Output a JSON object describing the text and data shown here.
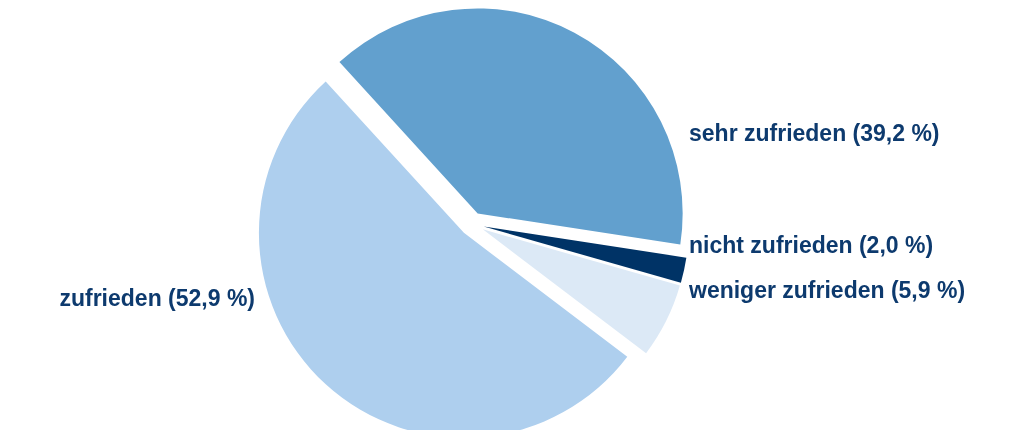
{
  "chart_data": {
    "type": "pie",
    "categories": [
      "sehr zufrieden (39,2 %)",
      "nicht zufrieden (2,0 %)",
      "weniger zufrieden (5,9 %)",
      "zufrieden (52,9 %)"
    ],
    "values": [
      39.2,
      2.0,
      5.9,
      52.9
    ],
    "colors": [
      "#62a0ce",
      "#003366",
      "#dce9f6",
      "#aecfee"
    ]
  }
}
